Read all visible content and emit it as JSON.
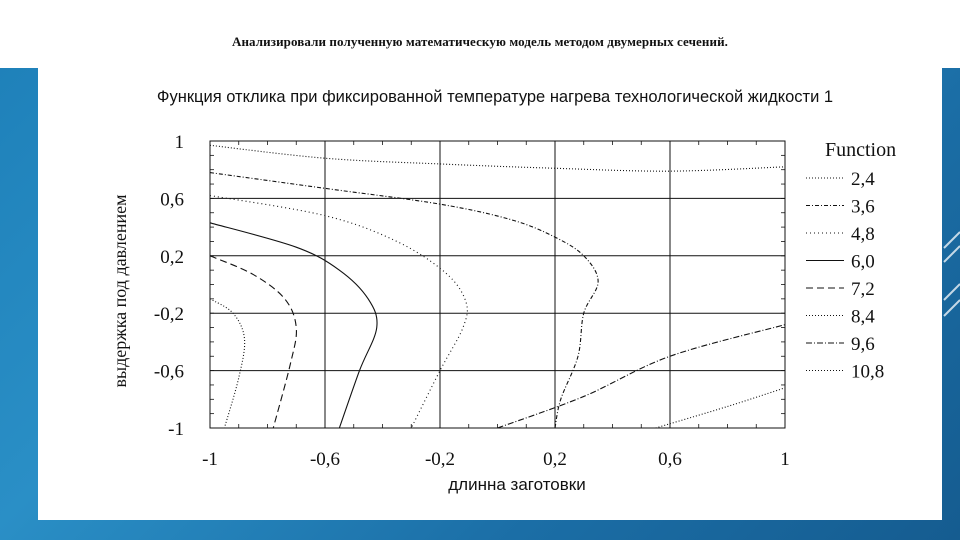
{
  "slide": {
    "title": "Анализировали полученную математическую модель методом двумерных сечений."
  },
  "colors": {
    "background": "#1d7fb8",
    "panel": "#ffffff",
    "ink": "#111111"
  },
  "chart_data": {
    "type": "contour",
    "title": "Функция отклика при фиксированной температуре нагрева технологической жидкости 1",
    "xlabel": "длинна заготовки",
    "ylabel": "выдержка под давлением",
    "xlim": [
      -1,
      1
    ],
    "ylim": [
      -1,
      1
    ],
    "x_ticks": [
      "-1",
      "-0,6",
      "-0,2",
      "0,2",
      "0,6",
      "1"
    ],
    "y_ticks": [
      "1",
      "0,6",
      "0,2",
      "-0,2",
      "-0,6",
      "-1"
    ],
    "grid": true,
    "legend_title": "Function",
    "legend_position": "right",
    "levels": [
      {
        "label": "2,4",
        "dash": "1,2"
      },
      {
        "label": "3,6",
        "dash": "4,2,1,2"
      },
      {
        "label": "4,8",
        "dash": "1,3"
      },
      {
        "label": "6,0",
        "dash": ""
      },
      {
        "label": "7,2",
        "dash": "7,4"
      },
      {
        "label": "8,4",
        "dash": "1,2"
      },
      {
        "label": "9,6",
        "dash": "6,2,1,2"
      },
      {
        "label": "10,8",
        "dash": "1,2"
      }
    ],
    "contours": [
      {
        "level": "2,4",
        "points": [
          [
            -1.0,
            0.97
          ],
          [
            -0.6,
            0.88
          ],
          [
            -0.2,
            0.84
          ],
          [
            0.2,
            0.81
          ],
          [
            0.6,
            0.79
          ],
          [
            1.0,
            0.82
          ]
        ]
      },
      {
        "level": "3,6",
        "points": [
          [
            -1.0,
            0.78
          ],
          [
            -0.6,
            0.67
          ],
          [
            -0.2,
            0.56
          ],
          [
            0.05,
            0.45
          ],
          [
            0.2,
            0.33
          ],
          [
            0.3,
            0.2
          ],
          [
            0.35,
            0.02
          ],
          [
            0.3,
            -0.2
          ],
          [
            0.28,
            -0.5
          ],
          [
            0.22,
            -0.8
          ],
          [
            0.2,
            -1.0
          ]
        ]
      },
      {
        "level": "4,8",
        "points": [
          [
            -1.0,
            0.62
          ],
          [
            -0.6,
            0.48
          ],
          [
            -0.35,
            0.3
          ],
          [
            -0.18,
            0.08
          ],
          [
            -0.11,
            -0.12
          ],
          [
            -0.12,
            -0.3
          ],
          [
            -0.2,
            -0.6
          ],
          [
            -0.3,
            -1.0
          ]
        ]
      },
      {
        "level": "6,0",
        "points": [
          [
            -1.0,
            0.43
          ],
          [
            -0.7,
            0.26
          ],
          [
            -0.55,
            0.1
          ],
          [
            -0.45,
            -0.1
          ],
          [
            -0.42,
            -0.3
          ],
          [
            -0.48,
            -0.6
          ],
          [
            -0.55,
            -1.0
          ]
        ]
      },
      {
        "level": "7,2",
        "points": [
          [
            -1.0,
            0.2
          ],
          [
            -0.85,
            0.07
          ],
          [
            -0.74,
            -0.1
          ],
          [
            -0.7,
            -0.3
          ],
          [
            -0.72,
            -0.55
          ],
          [
            -0.78,
            -1.0
          ]
        ]
      },
      {
        "level": "8,4",
        "points": [
          [
            -1.0,
            -0.1
          ],
          [
            -0.92,
            -0.2
          ],
          [
            -0.88,
            -0.38
          ],
          [
            -0.9,
            -0.65
          ],
          [
            -0.95,
            -1.0
          ]
        ]
      },
      {
        "level": "9,6",
        "points": [
          [
            0.0,
            -1.0
          ],
          [
            0.3,
            -0.78
          ],
          [
            0.6,
            -0.5
          ],
          [
            1.0,
            -0.28
          ]
        ]
      },
      {
        "level": "10,8",
        "points": [
          [
            0.55,
            -1.0
          ],
          [
            0.8,
            -0.85
          ],
          [
            1.0,
            -0.72
          ]
        ]
      }
    ]
  }
}
